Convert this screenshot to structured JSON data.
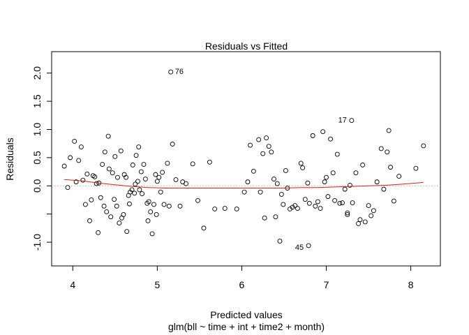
{
  "chart_data": {
    "type": "scatter",
    "title": "Residuals vs Fitted",
    "xlabel": "Predicted values",
    "subtitle": "glm(bll ~ time + int + time2 + month)",
    "ylabel": "Residuals",
    "xlim": [
      3.75,
      8.35
    ],
    "ylim": [
      -1.42,
      2.38
    ],
    "x_ticks": [
      4,
      5,
      6,
      7,
      8
    ],
    "y_ticks": [
      -1.0,
      -0.5,
      0.0,
      0.5,
      1.0,
      1.5,
      2.0
    ],
    "x_tick_labels": [
      "4",
      "5",
      "6",
      "7",
      "8"
    ],
    "y_tick_labels": [
      "-1.0",
      "",
      "0.0",
      "0.5",
      "1.0",
      "1.5",
      "2.0"
    ],
    "zero_line_color": "#aaaaaa",
    "smooth_color": "#e41a1c",
    "labeled_points": [
      {
        "label": "76",
        "x": 5.16,
        "y": 2.02
      },
      {
        "label": "17",
        "x": 7.3,
        "y": 1.16
      },
      {
        "label": "45",
        "x": 6.79,
        "y": -1.06
      }
    ],
    "points": [
      [
        3.9,
        0.35
      ],
      [
        3.94,
        -0.03
      ],
      [
        3.97,
        0.5
      ],
      [
        4.02,
        0.79
      ],
      [
        4.04,
        0.07
      ],
      [
        4.07,
        0.45
      ],
      [
        4.1,
        0.69
      ],
      [
        4.12,
        0.1
      ],
      [
        4.15,
        -0.33
      ],
      [
        4.17,
        0.21
      ],
      [
        4.2,
        -0.62
      ],
      [
        4.22,
        -0.25
      ],
      [
        4.24,
        0.18
      ],
      [
        4.26,
        0.16
      ],
      [
        4.28,
        0.04
      ],
      [
        4.3,
        -0.83
      ],
      [
        4.31,
        0.05
      ],
      [
        4.33,
        -0.21
      ],
      [
        4.35,
        0.38
      ],
      [
        4.37,
        -0.36
      ],
      [
        4.38,
        0.6
      ],
      [
        4.4,
        -0.46
      ],
      [
        4.42,
        0.88
      ],
      [
        4.43,
        0.3
      ],
      [
        4.45,
        -0.55
      ],
      [
        4.47,
        0.23
      ],
      [
        4.49,
        -0.24
      ],
      [
        4.5,
        0.52
      ],
      [
        4.52,
        -0.36
      ],
      [
        4.53,
        0.15
      ],
      [
        4.55,
        -0.66
      ],
      [
        4.57,
        0.62
      ],
      [
        4.58,
        -0.57
      ],
      [
        4.6,
        -0.51
      ],
      [
        4.61,
        0.2
      ],
      [
        4.63,
        0.15
      ],
      [
        4.64,
        -0.81
      ],
      [
        4.66,
        -0.17
      ],
      [
        4.67,
        -0.32
      ],
      [
        4.68,
        -0.11
      ],
      [
        4.7,
        -0.07
      ],
      [
        4.71,
        0.37
      ],
      [
        4.73,
        -0.13
      ],
      [
        4.74,
        0.03
      ],
      [
        4.75,
        0.54
      ],
      [
        4.77,
        0.08
      ],
      [
        4.78,
        0.69
      ],
      [
        4.79,
        -0.07
      ],
      [
        4.81,
        0.25
      ],
      [
        4.82,
        -0.14
      ],
      [
        4.84,
        0.38
      ],
      [
        4.86,
        0.12
      ],
      [
        4.88,
        -0.31
      ],
      [
        4.89,
        -0.62
      ],
      [
        4.9,
        -0.28
      ],
      [
        4.92,
        -0.46
      ],
      [
        4.94,
        -0.85
      ],
      [
        4.96,
        -0.33
      ],
      [
        4.98,
        0.2
      ],
      [
        4.99,
        -0.51
      ],
      [
        5.0,
        0.08
      ],
      [
        5.02,
        0.15
      ],
      [
        5.04,
        -0.11
      ],
      [
        5.06,
        0.24
      ],
      [
        5.08,
        -0.33
      ],
      [
        5.12,
        0.4
      ],
      [
        5.14,
        -0.36
      ],
      [
        5.18,
        0.74
      ],
      [
        5.22,
        0.11
      ],
      [
        5.27,
        -0.36
      ],
      [
        5.3,
        0.07
      ],
      [
        5.34,
        0.04
      ],
      [
        5.42,
        0.39
      ],
      [
        5.48,
        -0.26
      ],
      [
        5.55,
        -0.75
      ],
      [
        5.62,
        0.42
      ],
      [
        5.68,
        -0.41
      ],
      [
        5.8,
        -0.4
      ],
      [
        5.94,
        -0.41
      ],
      [
        6.03,
        -0.11
      ],
      [
        6.07,
        0.07
      ],
      [
        6.1,
        0.72
      ],
      [
        6.14,
        0.26
      ],
      [
        6.2,
        0.82
      ],
      [
        6.22,
        -0.11
      ],
      [
        6.25,
        0.57
      ],
      [
        6.27,
        -0.57
      ],
      [
        6.29,
        0.85
      ],
      [
        6.32,
        0.7
      ],
      [
        6.35,
        0.6
      ],
      [
        6.38,
        0.12
      ],
      [
        6.4,
        -0.55
      ],
      [
        6.42,
        0.04
      ],
      [
        6.45,
        -0.98
      ],
      [
        6.47,
        -0.15
      ],
      [
        6.49,
        -0.33
      ],
      [
        6.52,
        0.27
      ],
      [
        6.54,
        -0.04
      ],
      [
        6.57,
        -0.41
      ],
      [
        6.6,
        -0.38
      ],
      [
        6.63,
        -0.35
      ],
      [
        6.66,
        -0.4
      ],
      [
        6.7,
        0.4
      ],
      [
        6.72,
        0.32
      ],
      [
        6.75,
        -0.24
      ],
      [
        6.78,
        0.05
      ],
      [
        6.8,
        -0.31
      ],
      [
        6.84,
        0.89
      ],
      [
        6.87,
        -0.36
      ],
      [
        6.9,
        -0.28
      ],
      [
        6.93,
        -0.4
      ],
      [
        6.96,
        0.96
      ],
      [
        6.98,
        0.07
      ],
      [
        7.0,
        0.15
      ],
      [
        7.02,
        -0.19
      ],
      [
        7.05,
        0.83
      ],
      [
        7.08,
        0.23
      ],
      [
        7.1,
        -0.26
      ],
      [
        7.13,
        0.56
      ],
      [
        7.16,
        -0.31
      ],
      [
        7.19,
        -0.3
      ],
      [
        7.22,
        -0.06
      ],
      [
        7.25,
        -0.48
      ],
      [
        7.28,
        0.01
      ],
      [
        7.31,
        -0.3
      ],
      [
        7.35,
        0.23
      ],
      [
        7.38,
        -0.67
      ],
      [
        7.4,
        -0.6
      ],
      [
        7.43,
        0.37
      ],
      [
        7.46,
        -0.64
      ],
      [
        7.5,
        -0.35
      ],
      [
        7.53,
        -0.53
      ],
      [
        7.56,
        -0.44
      ],
      [
        7.6,
        0.07
      ],
      [
        7.65,
        0.66
      ],
      [
        7.68,
        -0.06
      ],
      [
        7.72,
        0.6
      ],
      [
        7.76,
        0.33
      ],
      [
        7.8,
        -0.27
      ],
      [
        7.86,
        0.17
      ],
      [
        8.06,
        0.31
      ],
      [
        8.15,
        0.71
      ],
      [
        7.74,
        0.98
      ],
      [
        7.25,
        -0.51
      ]
    ],
    "smooth": [
      [
        3.9,
        0.11
      ],
      [
        4.1,
        0.09
      ],
      [
        4.3,
        0.05
      ],
      [
        4.5,
        0.02
      ],
      [
        4.7,
        -0.01
      ],
      [
        4.9,
        -0.03
      ],
      [
        5.1,
        -0.04
      ],
      [
        5.3,
        -0.04
      ],
      [
        5.5,
        -0.04
      ],
      [
        5.7,
        -0.04
      ],
      [
        5.9,
        -0.04
      ],
      [
        6.1,
        -0.04
      ],
      [
        6.3,
        -0.04
      ],
      [
        6.5,
        -0.04
      ],
      [
        6.7,
        -0.03
      ],
      [
        6.9,
        -0.03
      ],
      [
        7.1,
        -0.02
      ],
      [
        7.3,
        -0.01
      ],
      [
        7.5,
        0.0
      ],
      [
        7.7,
        0.01
      ],
      [
        7.9,
        0.03
      ],
      [
        8.15,
        0.06
      ]
    ]
  }
}
